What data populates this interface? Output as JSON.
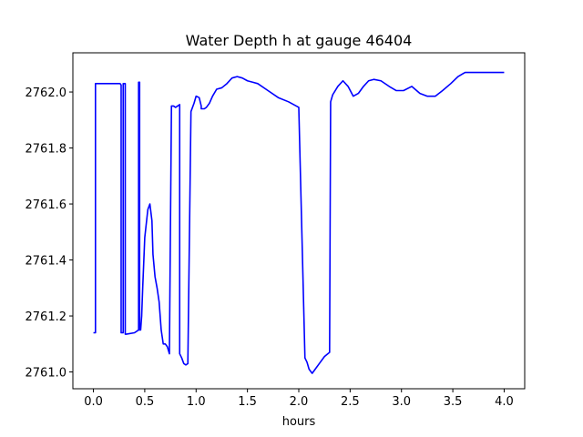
{
  "chart_data": {
    "type": "line",
    "title": "Water Depth h at gauge 46404",
    "xlabel": "hours",
    "ylabel": "",
    "xlim": [
      -0.2,
      4.2
    ],
    "ylim": [
      2760.94,
      2762.14
    ],
    "grid": false,
    "xticks": [
      0.0,
      0.5,
      1.0,
      1.5,
      2.0,
      2.5,
      3.0,
      3.5,
      4.0
    ],
    "xtick_labels": [
      "0.0",
      "0.5",
      "1.0",
      "1.5",
      "2.0",
      "2.5",
      "3.0",
      "3.5",
      "4.0"
    ],
    "yticks": [
      2761.0,
      2761.2,
      2761.4,
      2761.6,
      2761.8,
      2762.0
    ],
    "ytick_labels": [
      "2761.0",
      "2761.2",
      "2761.4",
      "2761.6",
      "2761.8",
      "2762.0"
    ],
    "series": [
      {
        "color": "#0000ff",
        "x": [
          0.0,
          0.02,
          0.02,
          0.26,
          0.27,
          0.27,
          0.29,
          0.29,
          0.3,
          0.31,
          0.31,
          0.32,
          0.4,
          0.44,
          0.44,
          0.45,
          0.45,
          0.46,
          0.47,
          0.48,
          0.5,
          0.53,
          0.55,
          0.57,
          0.58,
          0.6,
          0.62,
          0.64,
          0.66,
          0.68,
          0.7,
          0.72,
          0.74,
          0.76,
          0.78,
          0.8,
          0.82,
          0.84,
          0.84,
          0.86,
          0.88,
          0.9,
          0.92,
          0.92,
          0.95,
          0.98,
          1.0,
          1.03,
          1.05,
          1.05,
          1.08,
          1.1,
          1.13,
          1.16,
          1.2,
          1.25,
          1.3,
          1.35,
          1.4,
          1.45,
          1.5,
          1.55,
          1.6,
          1.7,
          1.8,
          1.9,
          2.0,
          2.06,
          2.08,
          2.1,
          2.13,
          2.16,
          2.2,
          2.25,
          2.3,
          2.31,
          2.33,
          2.38,
          2.43,
          2.48,
          2.53,
          2.58,
          2.63,
          2.68,
          2.73,
          2.8,
          2.88,
          2.95,
          3.02,
          3.1,
          3.18,
          3.25,
          3.33,
          3.4,
          3.48,
          3.55,
          3.62,
          3.7,
          3.78,
          3.86,
          3.94,
          4.0
        ],
        "y": [
          2761.14,
          2761.14,
          2762.03,
          2762.03,
          2762.025,
          2761.14,
          2761.14,
          2762.03,
          2762.03,
          2762.03,
          2761.135,
          2761.135,
          2761.14,
          2761.15,
          2762.035,
          2762.035,
          2761.15,
          2761.15,
          2761.2,
          2761.3,
          2761.48,
          2761.58,
          2761.6,
          2761.54,
          2761.42,
          2761.34,
          2761.3,
          2761.25,
          2761.15,
          2761.1,
          2761.1,
          2761.09,
          2761.065,
          2761.95,
          2761.95,
          2761.945,
          2761.95,
          2761.955,
          2761.065,
          2761.05,
          2761.03,
          2761.025,
          2761.03,
          2761.04,
          2761.93,
          2761.96,
          2761.985,
          2761.98,
          2761.95,
          2761.94,
          2761.94,
          2761.945,
          2761.96,
          2761.985,
          2762.01,
          2762.015,
          2762.03,
          2762.05,
          2762.055,
          2762.05,
          2762.04,
          2762.035,
          2762.03,
          2762.005,
          2761.98,
          2761.965,
          2761.945,
          2761.05,
          2761.035,
          2761.01,
          2760.995,
          2761.01,
          2761.03,
          2761.055,
          2761.07,
          2761.965,
          2761.99,
          2762.02,
          2762.04,
          2762.02,
          2761.985,
          2761.995,
          2762.02,
          2762.04,
          2762.045,
          2762.04,
          2762.02,
          2762.005,
          2762.005,
          2762.02,
          2761.995,
          2761.985,
          2761.985,
          2762.005,
          2762.03,
          2762.055,
          2762.07,
          2762.07,
          2762.07,
          2762.07,
          2762.07,
          2762.07
        ]
      }
    ]
  }
}
